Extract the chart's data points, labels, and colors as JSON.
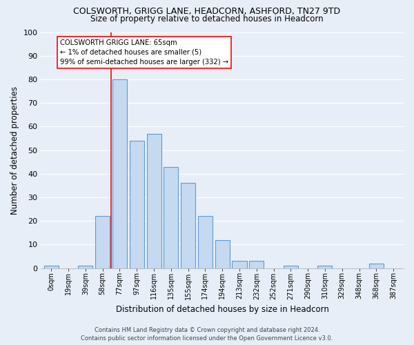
{
  "title": "COLSWORTH, GRIGG LANE, HEADCORN, ASHFORD, TN27 9TD",
  "subtitle": "Size of property relative to detached houses in Headcorn",
  "xlabel": "Distribution of detached houses by size in Headcorn",
  "ylabel": "Number of detached properties",
  "bar_color": "#c5d9f0",
  "bar_edge_color": "#5b9bd5",
  "background_color": "#e8eef7",
  "footer_line1": "Contains HM Land Registry data © Crown copyright and database right 2024.",
  "footer_line2": "Contains public sector information licensed under the Open Government Licence v3.0.",
  "bin_labels": [
    "0sqm",
    "19sqm",
    "39sqm",
    "58sqm",
    "77sqm",
    "97sqm",
    "116sqm",
    "135sqm",
    "155sqm",
    "174sqm",
    "194sqm",
    "213sqm",
    "232sqm",
    "252sqm",
    "271sqm",
    "290sqm",
    "310sqm",
    "329sqm",
    "348sqm",
    "368sqm",
    "387sqm"
  ],
  "bar_heights": [
    1,
    0,
    1,
    22,
    80,
    54,
    57,
    43,
    36,
    22,
    12,
    3,
    3,
    0,
    1,
    0,
    1,
    0,
    0,
    2,
    0
  ],
  "ylim": [
    0,
    100
  ],
  "yticks": [
    0,
    10,
    20,
    30,
    40,
    50,
    60,
    70,
    80,
    90,
    100
  ],
  "property_size_bin": 3,
  "annotation_title": "COLSWORTH GRIGG LANE: 65sqm",
  "annotation_line1": "← 1% of detached houses are smaller (5)",
  "annotation_line2": "99% of semi-detached houses are larger (332) →"
}
